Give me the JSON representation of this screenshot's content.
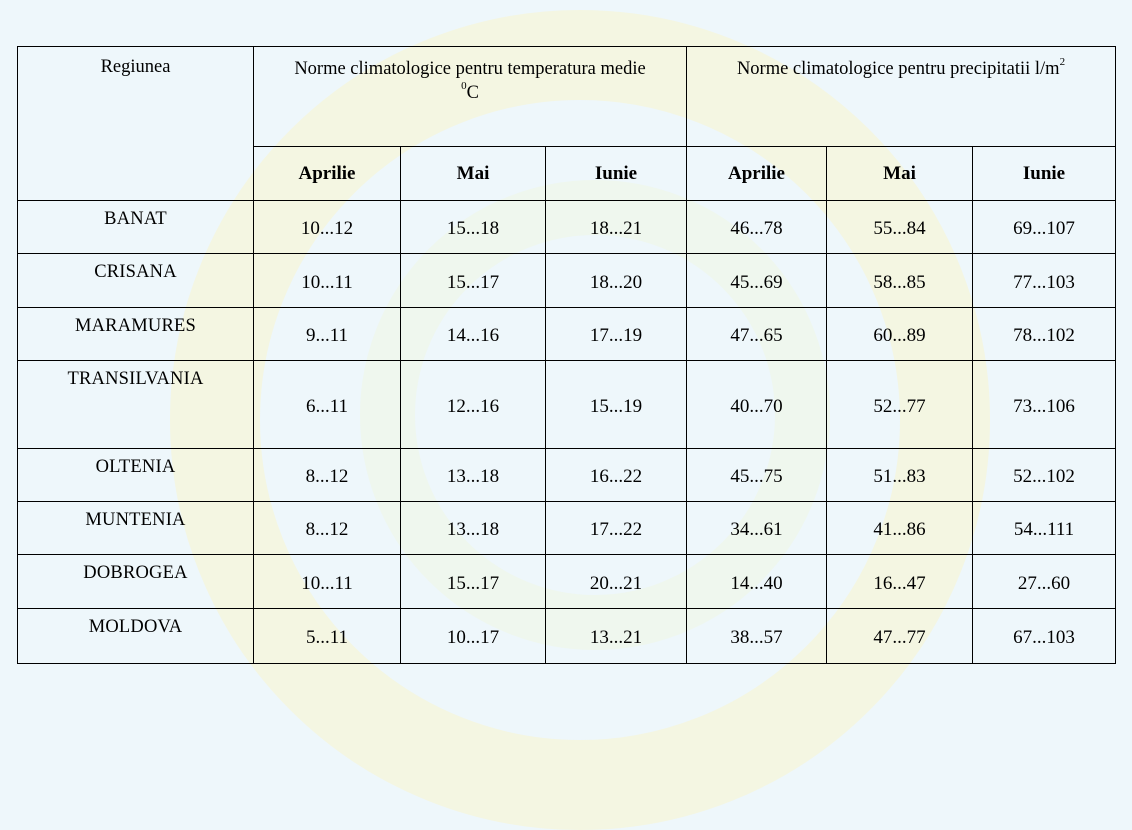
{
  "table": {
    "region_header": "Regiunea",
    "temp_header": "Norme climatologice pentru temperatura medie",
    "temp_unit_sup": "0",
    "temp_unit": "C",
    "precip_header": "Norme climatologice pentru precipitatii l/m",
    "precip_unit_sup": "2",
    "months": [
      "Aprilie",
      "Mai",
      "Iunie",
      "Aprilie",
      "Mai",
      "Iunie"
    ],
    "rows": [
      {
        "region": "BANAT",
        "values": [
          "10...12",
          "15...18",
          "18...21",
          "46...78",
          "55...84",
          "69...107"
        ]
      },
      {
        "region": "CRISANA",
        "values": [
          "10...11",
          "15...17",
          "18...20",
          "45...69",
          "58...85",
          "77...103"
        ]
      },
      {
        "region": "MARAMURES",
        "values": [
          "9...11",
          "14...16",
          "17...19",
          "47...65",
          "60...89",
          "78...102"
        ]
      },
      {
        "region": "TRANSILVANIA",
        "values": [
          "6...11",
          "12...16",
          "15...19",
          "40...70",
          "52...77",
          "73...106"
        ]
      },
      {
        "region": "OLTENIA",
        "values": [
          "8...12",
          "13...18",
          "16...22",
          "45...75",
          "51...83",
          "52...102"
        ]
      },
      {
        "region": "MUNTENIA",
        "values": [
          "8...12",
          "13...18",
          "17...22",
          "34...61",
          "41...86",
          "54...111"
        ]
      },
      {
        "region": "DOBROGEA",
        "values": [
          "10...11",
          "15...17",
          "20...21",
          "14...40",
          "16...47",
          "27...60"
        ]
      },
      {
        "region": "MOLDOVA",
        "values": [
          "5...11",
          "10...17",
          "13...21",
          "38...57",
          "47...77",
          "67...103"
        ]
      }
    ]
  }
}
